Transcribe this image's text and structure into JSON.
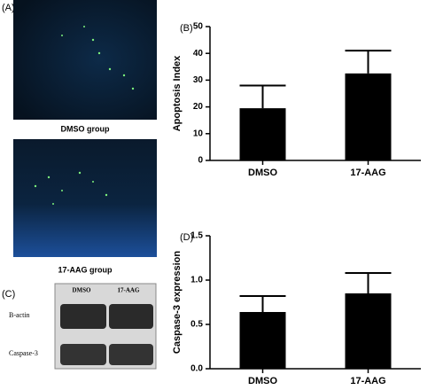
{
  "panel_a": {
    "label": "(A)",
    "captions": [
      "DMSO group",
      "17-AAG group"
    ]
  },
  "panel_c": {
    "label": "(C)",
    "columns": [
      "DMSO",
      "17-AAG"
    ],
    "rows": [
      "B-actin",
      "Caspase-3"
    ]
  },
  "chart_data": [
    {
      "type": "bar",
      "panel_label": "(B)",
      "y_label": "Apoptosis Index",
      "categories": [
        "DMSO",
        "17-AAG"
      ],
      "values": [
        19.5,
        32.5
      ],
      "errors": [
        8.5,
        8.5
      ],
      "color": "#000000",
      "ylim": [
        0,
        50
      ],
      "yticks": [
        0,
        10,
        20,
        30,
        40,
        50
      ]
    },
    {
      "type": "bar",
      "panel_label": "(D)",
      "y_label": "Caspase-3  expression",
      "categories": [
        "DMSO",
        "17-AAG"
      ],
      "values": [
        0.64,
        0.85
      ],
      "errors": [
        0.18,
        0.23
      ],
      "color": "#000000",
      "ylim": [
        0,
        1.5
      ],
      "yticks": [
        {
          "value": 0,
          "label": "0.0"
        },
        0.5,
        {
          "value": 1,
          "label": "1.0"
        },
        1.5
      ]
    }
  ]
}
